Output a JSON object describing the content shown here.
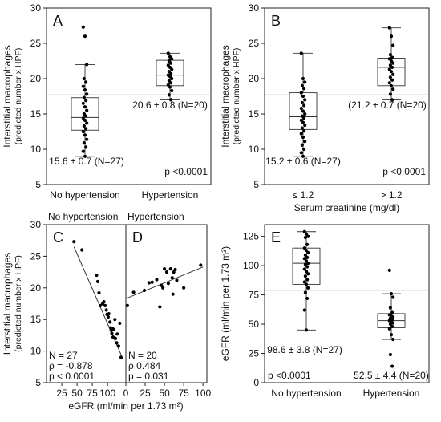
{
  "chart_data": [
    {
      "id": "A",
      "type": "box",
      "letter": "A",
      "ylabel": "Interstitial macrophages",
      "ylabel2": "(predicted number x HPF)",
      "ylim": [
        5,
        30
      ],
      "yticks": [
        5,
        10,
        15,
        20,
        25,
        30
      ],
      "reference_line": 17.7,
      "categories": [
        "No hypertension",
        "Hypertension"
      ],
      "boxes": [
        {
          "whisker_low": 9.0,
          "q1": 12.7,
          "median": 14.5,
          "q3": 17.3,
          "whisker_high": 22.0,
          "points": [
            27.3,
            26.0,
            22.0,
            20.0,
            19.5,
            18.9,
            18.4,
            17.8,
            17.3,
            16.9,
            16.5,
            16.0,
            15.5,
            15.0,
            14.7,
            14.4,
            14.1,
            13.7,
            13.3,
            12.9,
            12.5,
            12.0,
            11.4,
            10.9,
            10.3,
            9.7,
            9.0
          ],
          "label": "15.6 ± 0.7 (N=27)"
        },
        {
          "whisker_low": 17.0,
          "q1": 19.0,
          "median": 20.5,
          "q3": 22.6,
          "whisker_high": 23.6,
          "points": [
            23.6,
            23.1,
            22.8,
            22.5,
            22.2,
            21.9,
            21.6,
            21.3,
            21.0,
            20.7,
            20.5,
            20.3,
            20.0,
            19.7,
            19.4,
            19.1,
            18.8,
            18.3,
            17.7,
            17.0
          ],
          "label": "20.6 ± 0.8 (N=20)"
        }
      ],
      "pvalue": "p <0.0001"
    },
    {
      "id": "B",
      "type": "box",
      "letter": "B",
      "ylabel": "Interstitial macrophages",
      "ylabel2": "(predicted number x HPF)",
      "xlabel": "Serum creatinine (mg/dl)",
      "ylim": [
        5,
        30
      ],
      "yticks": [
        5,
        10,
        15,
        20,
        25,
        30
      ],
      "reference_line": 17.7,
      "categories": [
        "≤ 1.2",
        "> 1.2"
      ],
      "boxes": [
        {
          "whisker_low": 9.0,
          "q1": 12.8,
          "median": 14.6,
          "q3": 18.0,
          "whisker_high": 23.6,
          "points": [
            23.6,
            20.0,
            19.5,
            19.0,
            18.6,
            18.0,
            17.5,
            17.0,
            16.6,
            16.2,
            15.8,
            15.4,
            15.0,
            14.7,
            14.4,
            14.1,
            13.8,
            13.4,
            13.0,
            12.6,
            12.2,
            11.7,
            11.1,
            10.6,
            10.0,
            9.5,
            9.0
          ],
          "label": "15.2 ± 0.6 (N=27)"
        },
        {
          "whisker_low": 17.0,
          "q1": 19.0,
          "median": 21.6,
          "q3": 22.9,
          "whisker_high": 27.2,
          "points": [
            27.2,
            26.0,
            24.7,
            23.4,
            23.0,
            22.8,
            22.5,
            22.2,
            21.9,
            21.6,
            21.3,
            21.0,
            20.6,
            20.2,
            19.8,
            19.4,
            19.0,
            18.5,
            17.8,
            17.0
          ],
          "label": "(21.2 ± 0.7 (N=20)"
        }
      ],
      "pvalue": "p <0.0001"
    },
    {
      "id": "C",
      "type": "scatter",
      "letter": "C",
      "header": "No hypertension",
      "ylabel": "Interstitial macrophages",
      "ylabel2": "(predicted number x HPF)",
      "xlim": [
        0,
        130
      ],
      "xticks": [
        25,
        50,
        75,
        100
      ],
      "ylim": [
        5,
        30
      ],
      "yticks": [
        5,
        10,
        15,
        20,
        25,
        30
      ],
      "fit": [
        [
          45,
          26.5
        ],
        [
          125,
          8.8
        ]
      ],
      "points": [
        [
          45,
          27.3
        ],
        [
          58,
          26.0
        ],
        [
          82,
          22.0
        ],
        [
          84,
          21.0
        ],
        [
          86,
          19.2
        ],
        [
          88,
          17.2
        ],
        [
          92,
          17.5
        ],
        [
          94,
          17.8
        ],
        [
          96,
          17.2
        ],
        [
          98,
          16.5
        ],
        [
          99,
          15.8
        ],
        [
          101,
          15.4
        ],
        [
          102,
          15.9
        ],
        [
          104,
          14.6
        ],
        [
          105,
          13.7
        ],
        [
          106,
          13.3
        ],
        [
          107,
          12.8
        ],
        [
          108,
          13.6
        ],
        [
          109,
          12.2
        ],
        [
          110,
          13.4
        ],
        [
          112,
          15.0
        ],
        [
          113,
          12.0
        ],
        [
          115,
          11.3
        ],
        [
          116,
          12.7
        ],
        [
          118,
          10.8
        ],
        [
          120,
          14.4
        ],
        [
          122,
          9.0
        ]
      ],
      "stats": [
        "N = 27",
        "ρ = -0.878",
        "p < 0.0001"
      ]
    },
    {
      "id": "D",
      "type": "scatter",
      "letter": "D",
      "header": "Hypertension",
      "xlabel": "eGFR (ml/min per 1.73 m²)",
      "xlim": [
        0,
        105
      ],
      "xticks": [
        0,
        25,
        50,
        75,
        100
      ],
      "ylim": [
        5,
        30
      ],
      "fit": [
        [
          0,
          18.3
        ],
        [
          100,
          23.3
        ]
      ],
      "points": [
        [
          2,
          17.2
        ],
        [
          10,
          19.3
        ],
        [
          24,
          19.6
        ],
        [
          30,
          20.8
        ],
        [
          34,
          20.9
        ],
        [
          40,
          21.3
        ],
        [
          44,
          17.0
        ],
        [
          46,
          20.4
        ],
        [
          48,
          20.0
        ],
        [
          50,
          23.0
        ],
        [
          53,
          22.5
        ],
        [
          55,
          20.7
        ],
        [
          58,
          23.0
        ],
        [
          60,
          21.6
        ],
        [
          61,
          19.0
        ],
        [
          62,
          22.5
        ],
        [
          64,
          22.9
        ],
        [
          66,
          21.2
        ],
        [
          75,
          20.0
        ],
        [
          97,
          23.6
        ]
      ],
      "stats": [
        "N = 20",
        "ρ 0.484",
        "p = 0.031"
      ]
    },
    {
      "id": "E",
      "type": "box",
      "letter": "E",
      "ylabel": "eGFR (ml/min per 1.73 m²)",
      "ylim": [
        0,
        135
      ],
      "yticks": [
        0,
        25,
        50,
        75,
        100,
        125
      ],
      "reference_line": 79,
      "categories": [
        "No hypertension",
        "Hypertension"
      ],
      "boxes": [
        {
          "whisker_low": 45,
          "q1": 84,
          "median": 102,
          "q3": 115,
          "whisker_high": 129,
          "points": [
            129,
            127,
            125,
            124,
            118,
            115,
            113,
            111,
            109,
            107,
            106,
            104,
            102,
            101,
            99,
            97,
            95,
            93,
            91,
            88,
            86,
            84,
            81,
            77,
            72,
            62,
            45
          ],
          "label": "98.6 ± 3.8 (N=27)"
        },
        {
          "whisker_low": 37,
          "q1": 47,
          "median": 53,
          "q3": 59,
          "whisker_high": 76,
          "points": [
            96,
            76,
            73,
            64,
            60,
            58,
            57,
            56,
            55,
            54,
            53,
            52,
            51,
            50,
            48,
            46,
            41,
            37,
            24,
            14
          ],
          "label": "52.5 ± 4.4 (N=20)"
        }
      ],
      "pvalue": "p <0.0001"
    }
  ]
}
